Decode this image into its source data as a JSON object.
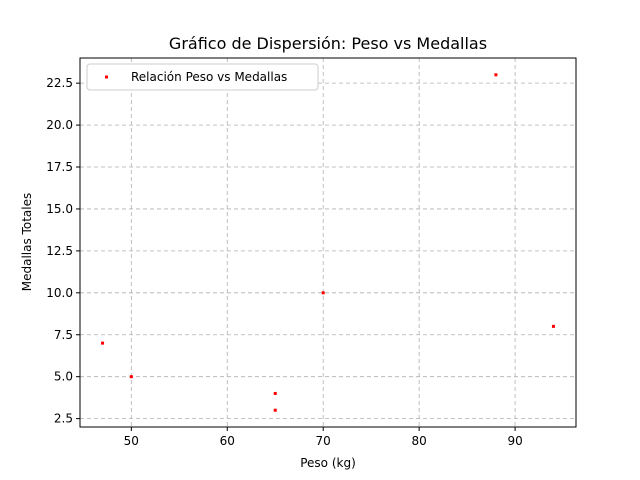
{
  "chart_data": {
    "type": "scatter",
    "title": "Gráfico de Dispersión: Peso vs Medallas",
    "xlabel": "Peso (kg)",
    "ylabel": "Medallas Totales",
    "xlim": [
      44.65,
      96.35
    ],
    "ylim": [
      2.0,
      24.0
    ],
    "xticks": [
      50,
      60,
      70,
      80,
      90
    ],
    "yticks": [
      2.5,
      5.0,
      7.5,
      10.0,
      12.5,
      15.0,
      17.5,
      20.0,
      22.5
    ],
    "xtick_labels": [
      "50",
      "60",
      "70",
      "80",
      "90"
    ],
    "ytick_labels": [
      "2.5",
      "5.0",
      "7.5",
      "10.0",
      "12.5",
      "15.0",
      "17.5",
      "20.0",
      "22.5"
    ],
    "grid": true,
    "grid_style": "dashed",
    "legend_position": "upper-left",
    "series": [
      {
        "name": "Relación Peso vs Medallas",
        "color": "#ff0000",
        "x": [
          47,
          50,
          65,
          65,
          70,
          88,
          94
        ],
        "y": [
          7,
          5,
          4,
          3,
          10,
          23,
          8
        ]
      }
    ]
  }
}
